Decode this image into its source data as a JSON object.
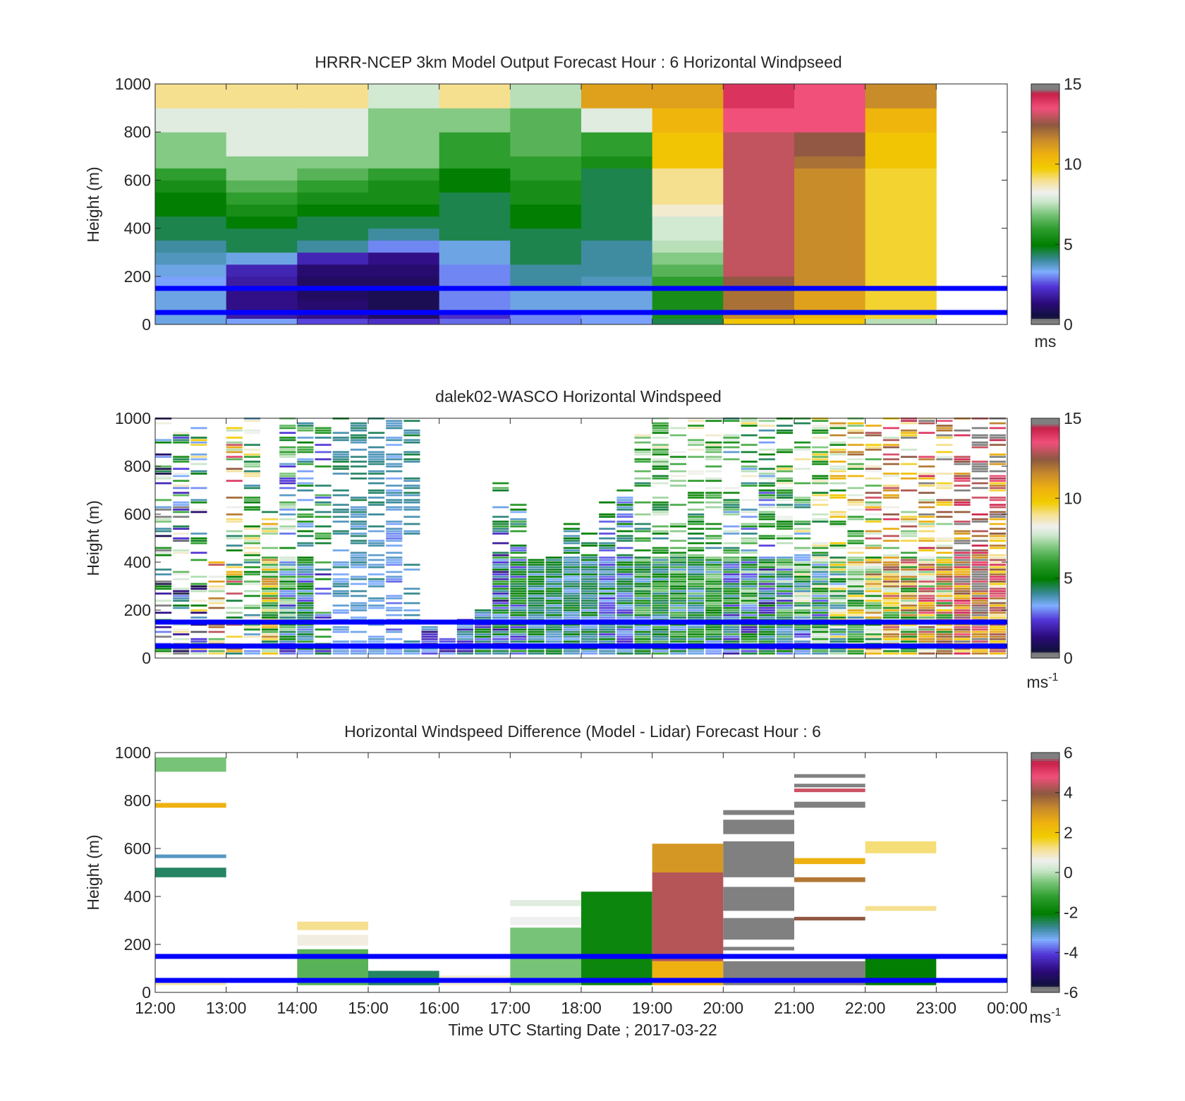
{
  "figure": {
    "xlabel": "Time UTC  Starting Date ; 2017-03-22",
    "x_tick_labels": [
      "12:00",
      "13:00",
      "14:00",
      "15:00",
      "16:00",
      "17:00",
      "18:00",
      "19:00",
      "20:00",
      "21:00",
      "22:00",
      "23:00",
      "00:00"
    ],
    "colors": {
      "low_band": "#0000ff",
      "high_band": "#0000ff"
    }
  },
  "chart_data": [
    {
      "type": "heatmap",
      "title": "HRRR-NCEP 3km Model Output   Forecast Hour : 6 Horizontal Windpseed",
      "ylabel": "Height (m)",
      "xlim": [
        "12:00",
        "00:00"
      ],
      "ylim": [
        0,
        1000
      ],
      "y_ticks": [
        0,
        200,
        400,
        600,
        800,
        1000
      ],
      "colorbar": {
        "min": 0,
        "max": 15,
        "ticks": [
          0,
          5,
          10,
          15
        ],
        "unit_label": "ms",
        "unit_sup": ""
      },
      "grid": false,
      "legend": "none",
      "horizontal_lines_m": [
        150,
        50
      ],
      "columns_start": [
        "12:00",
        "13:00",
        "14:00",
        "15:00",
        "16:00",
        "17:00",
        "18:00",
        "19:00",
        "20:00",
        "21:00",
        "22:00"
      ],
      "column_width_hours": 1,
      "levels_m": [
        0,
        25,
        50,
        75,
        100,
        150,
        200,
        250,
        300,
        350,
        400,
        450,
        500,
        550,
        600,
        650,
        700,
        800,
        900,
        1000
      ],
      "values": [
        [
          3.5,
          3.2,
          2.5,
          2.2,
          2.8,
          3.0,
          3.2,
          4.5,
          10.0,
          10.0,
          7.5
        ],
        [
          3.5,
          1.8,
          1.5,
          1.0,
          2.2,
          3.0,
          3.2,
          5.5,
          11.5,
          10.5,
          9.5
        ],
        [
          3.5,
          1.5,
          1.2,
          0.8,
          3.0,
          3.5,
          3.5,
          5.5,
          12.0,
          11.0,
          9.5
        ],
        [
          3.5,
          1.5,
          1.2,
          0.8,
          3.0,
          3.5,
          3.5,
          5.5,
          12.0,
          11.0,
          9.5
        ],
        [
          3.5,
          1.5,
          1.0,
          0.8,
          3.0,
          3.5,
          3.5,
          5.5,
          12.0,
          11.0,
          9.5
        ],
        [
          3.2,
          1.8,
          1.0,
          1.0,
          3.0,
          4.0,
          3.8,
          6.0,
          12.5,
          11.5,
          9.5
        ],
        [
          3.5,
          2.0,
          1.2,
          1.2,
          3.0,
          4.0,
          4.0,
          6.5,
          13.0,
          11.5,
          9.5
        ],
        [
          3.8,
          3.5,
          2.0,
          1.5,
          3.5,
          4.5,
          4.0,
          7.0,
          13.0,
          11.5,
          9.5
        ],
        [
          4.0,
          4.5,
          4.0,
          3.0,
          3.5,
          4.5,
          4.0,
          7.5,
          13.0,
          11.5,
          9.5
        ],
        [
          4.5,
          4.5,
          4.5,
          4.0,
          4.5,
          4.5,
          4.5,
          7.8,
          13.0,
          11.5,
          9.5
        ],
        [
          4.5,
          5.0,
          4.5,
          4.5,
          4.5,
          5.0,
          4.5,
          7.8,
          13.0,
          11.5,
          9.5
        ],
        [
          5.0,
          5.5,
          5.0,
          5.0,
          4.5,
          5.0,
          4.5,
          8.5,
          13.0,
          11.5,
          9.5
        ],
        [
          5.0,
          6.0,
          5.5,
          5.5,
          4.5,
          5.5,
          4.5,
          9.0,
          13.0,
          11.5,
          9.5
        ],
        [
          5.5,
          6.5,
          6.0,
          5.5,
          5.0,
          5.5,
          4.5,
          9.0,
          13.0,
          11.5,
          9.5
        ],
        [
          6.0,
          7.0,
          6.5,
          6.0,
          5.0,
          6.0,
          4.5,
          9.0,
          13.0,
          11.5,
          9.5
        ],
        [
          7.0,
          7.0,
          7.0,
          7.0,
          6.0,
          6.0,
          5.5,
          10.0,
          13.0,
          12.0,
          10.0
        ],
        [
          7.0,
          8.0,
          8.0,
          7.0,
          6.0,
          6.5,
          6.0,
          10.0,
          13.0,
          12.5,
          10.0
        ],
        [
          8.0,
          8.0,
          8.0,
          7.0,
          7.0,
          6.5,
          8.0,
          10.5,
          13.5,
          13.5,
          10.5
        ],
        [
          9.0,
          9.0,
          9.0,
          7.8,
          9.0,
          7.5,
          11.0,
          11.0,
          14.0,
          13.5,
          11.5
        ],
        [
          9.5,
          9.0,
          9.5,
          7.8,
          9.5,
          9.0,
          12.0,
          11.5,
          14.5,
          14.0,
          12.0
        ]
      ]
    },
    {
      "type": "heatmap",
      "title": "dalek02-WASCO  Horizontal Windspeed",
      "ylabel": "Height (m)",
      "xlim": [
        "12:00",
        "00:00"
      ],
      "ylim": [
        0,
        1000
      ],
      "y_ticks": [
        0,
        200,
        400,
        600,
        800,
        1000
      ],
      "colorbar": {
        "min": 0,
        "max": 15,
        "ticks": [
          0,
          5,
          10,
          15
        ],
        "unit_label": "ms",
        "unit_sup": "-1"
      },
      "grid": false,
      "legend": "none",
      "horizontal_lines_m": [
        150,
        50
      ],
      "profile_interval_minutes": 15,
      "column_tops_m": [
        1000,
        960,
        960,
        400,
        960,
        1000,
        640,
        1000,
        1000,
        1000,
        1000,
        1000,
        1000,
        1000,
        1000,
        130,
        80,
        160,
        200,
        750,
        650,
        410,
        440,
        560,
        550,
        660,
        700,
        1000,
        1000,
        1000,
        1000,
        1000,
        1000,
        1000,
        1000,
        1000,
        1000,
        1000,
        1000,
        1000,
        1000,
        1000,
        1000,
        1000,
        1000,
        1000,
        1000,
        1000
      ],
      "column_mean_speed": [
        3.5,
        4.0,
        5.0,
        9.0,
        8.5,
        6.0,
        8.0,
        4.5,
        4.0,
        4.0,
        3.5,
        3.5,
        3.5,
        3.0,
        3.5,
        2.5,
        2.5,
        3.0,
        3.5,
        3.5,
        4.0,
        4.0,
        4.0,
        4.0,
        4.0,
        3.5,
        3.5,
        4.5,
        4.5,
        4.5,
        4.5,
        4.5,
        4.0,
        4.0,
        3.5,
        4.5,
        5.0,
        5.0,
        6.0,
        7.0,
        8.0,
        9.0,
        8.5,
        9.5,
        9.0,
        12.0,
        13.0,
        10.5
      ],
      "column_spread": [
        5.0,
        5.0,
        5.0,
        4.0,
        5.0,
        3.0,
        4.0,
        3.0,
        2.0,
        2.5,
        0.5,
        0.5,
        0.5,
        0.5,
        0.5,
        1.5,
        1.0,
        1.5,
        2.0,
        2.5,
        2.0,
        1.0,
        1.0,
        1.0,
        1.0,
        1.5,
        1.5,
        2.0,
        2.0,
        2.0,
        2.0,
        2.0,
        2.5,
        3.0,
        3.0,
        3.0,
        3.0,
        3.0,
        3.5,
        3.5,
        4.0,
        4.0,
        4.0,
        4.0,
        4.0,
        3.0,
        3.0,
        3.0
      ]
    },
    {
      "type": "heatmap",
      "title": "Horizontal Windspeed Difference (Model - Lidar) Forecast Hour : 6",
      "ylabel": "Height (m)",
      "xlim": [
        "12:00",
        "00:00"
      ],
      "ylim": [
        0,
        1000
      ],
      "y_ticks": [
        0,
        200,
        400,
        600,
        800,
        1000
      ],
      "colorbar": {
        "min": -6,
        "max": 6,
        "ticks": [
          -6,
          -4,
          -2,
          0,
          2,
          4,
          6
        ],
        "unit_label": "ms",
        "unit_sup": "-1"
      },
      "grid": false,
      "legend": "none",
      "horizontal_lines_m": [
        150,
        50
      ],
      "bands": [
        {
          "start": "12:00",
          "bottom": 30,
          "top": 50,
          "value": 1.0
        },
        {
          "start": "12:00",
          "bottom": 480,
          "top": 520,
          "value": -2.5
        },
        {
          "start": "12:00",
          "bottom": 560,
          "top": 575,
          "value": -3.0
        },
        {
          "start": "12:00",
          "bottom": 770,
          "top": 790,
          "value": 2.5
        },
        {
          "start": "12:00",
          "bottom": 920,
          "top": 980,
          "value": -0.5
        },
        {
          "start": "14:00",
          "bottom": 30,
          "top": 180,
          "value": -0.8
        },
        {
          "start": "14:00",
          "bottom": 195,
          "top": 240,
          "value": 0.7
        },
        {
          "start": "14:00",
          "bottom": 260,
          "top": 295,
          "value": 1.2
        },
        {
          "start": "15:00",
          "bottom": 30,
          "top": 90,
          "value": -2.5
        },
        {
          "start": "16:00",
          "bottom": 30,
          "top": 70,
          "value": 0.8
        },
        {
          "start": "17:00",
          "bottom": 30,
          "top": 270,
          "value": -0.5
        },
        {
          "start": "17:00",
          "bottom": 280,
          "top": 315,
          "value": 0.6
        },
        {
          "start": "17:00",
          "bottom": 360,
          "top": 385,
          "value": 0.4
        },
        {
          "start": "18:00",
          "bottom": 30,
          "top": 420,
          "value": -1.8
        },
        {
          "start": "19:00",
          "bottom": 30,
          "top": 130,
          "value": 2.5
        },
        {
          "start": "19:00",
          "bottom": 130,
          "top": 500,
          "value": 4.3
        },
        {
          "start": "19:00",
          "bottom": 500,
          "top": 620,
          "value": 3.0
        },
        {
          "start": "20:00",
          "bottom": 30,
          "top": 130,
          "value": 7.0
        },
        {
          "start": "20:00",
          "bottom": 175,
          "top": 190,
          "value": 7.0
        },
        {
          "start": "20:00",
          "bottom": 220,
          "top": 310,
          "value": 7.0
        },
        {
          "start": "20:00",
          "bottom": 340,
          "top": 440,
          "value": 7.0
        },
        {
          "start": "20:00",
          "bottom": 480,
          "top": 630,
          "value": 7.0
        },
        {
          "start": "20:00",
          "bottom": 660,
          "top": 720,
          "value": 7.0
        },
        {
          "start": "20:00",
          "bottom": 740,
          "top": 760,
          "value": 7.0
        },
        {
          "start": "21:00",
          "bottom": 30,
          "top": 130,
          "value": 7.0
        },
        {
          "start": "21:00",
          "bottom": 300,
          "top": 315,
          "value": 4.0
        },
        {
          "start": "21:00",
          "bottom": 460,
          "top": 480,
          "value": 3.5
        },
        {
          "start": "21:00",
          "bottom": 535,
          "top": 560,
          "value": 2.5
        },
        {
          "start": "21:00",
          "bottom": 770,
          "top": 795,
          "value": 7.0
        },
        {
          "start": "21:00",
          "bottom": 835,
          "top": 850,
          "value": 4.5
        },
        {
          "start": "21:00",
          "bottom": 855,
          "top": 870,
          "value": 7.0
        },
        {
          "start": "21:00",
          "bottom": 895,
          "top": 910,
          "value": 7.0
        },
        {
          "start": "22:00",
          "bottom": 30,
          "top": 150,
          "value": -2.0
        },
        {
          "start": "22:00",
          "bottom": 340,
          "top": 360,
          "value": 1.2
        },
        {
          "start": "22:00",
          "bottom": 580,
          "top": 630,
          "value": 1.3
        }
      ]
    }
  ]
}
